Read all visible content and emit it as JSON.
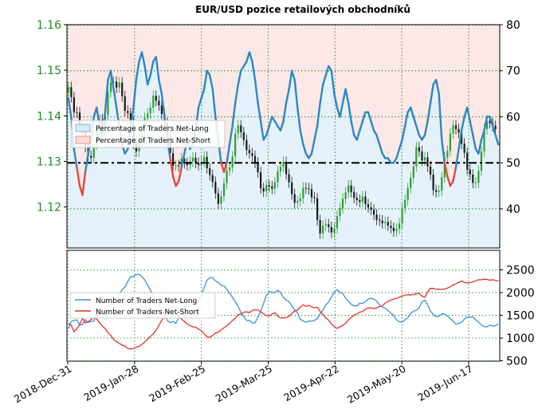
{
  "chart_data": [
    {
      "type": "line",
      "title": "EUR/USD pozice retailových obchodníků",
      "x_tick_labels": [
        "2018-Dec-31",
        "2019-Jan-28",
        "2019-Feb-25",
        "2019-Mar-25",
        "2019-Apr-22",
        "2019-May-20",
        "2019-Jun-17"
      ],
      "left_axis": {
        "ticks": [
          "1.12",
          "1.13",
          "1.14",
          "1.15",
          "1.16"
        ],
        "ylim": [
          1.111,
          1.16
        ],
        "color": "#228B22"
      },
      "right_axis": {
        "ticks": [
          "40",
          "50",
          "60",
          "70",
          "80"
        ],
        "ylim": [
          31.5,
          80
        ]
      },
      "reference_line": {
        "value": 50,
        "style": "dash-dot",
        "color": "#000000"
      },
      "legend": {
        "placement": "center-left",
        "entries": [
          "Percentage of Traders Net-Long",
          "Percentage of Traders Net-Short"
        ]
      },
      "colors": {
        "net_long": "#2E86C1",
        "net_long_light": "#7FB8DE",
        "net_short": "#E8463A",
        "long_fill": "#D6EAF8",
        "short_fill": "#FADBD8",
        "candle": "#1A1A1A",
        "candle_up": "#2CA02C"
      },
      "pct_net_long": [
        64,
        60,
        53,
        49,
        45,
        43,
        48,
        52,
        55,
        60,
        62,
        58,
        56,
        61,
        68,
        70,
        66,
        62,
        58,
        54,
        52,
        53,
        57,
        62,
        68,
        72,
        74,
        71,
        67,
        69,
        72,
        73,
        68,
        65,
        60,
        55,
        51,
        47,
        45,
        46,
        49,
        52,
        55,
        53,
        54,
        57,
        62,
        64,
        66,
        70,
        69,
        66,
        60,
        55,
        50,
        48,
        50,
        54,
        58,
        63,
        67,
        70,
        71,
        72,
        74,
        72,
        68,
        63,
        59,
        55,
        56,
        58,
        60,
        59,
        58,
        57,
        59,
        63,
        66,
        70,
        68,
        62,
        57,
        54,
        52,
        51,
        52,
        55,
        58,
        63,
        67,
        69,
        71,
        70,
        65,
        62,
        60,
        63,
        66,
        63,
        59,
        56,
        55,
        57,
        59,
        61,
        61,
        59,
        57,
        56,
        54,
        52,
        51,
        51,
        50,
        50,
        51,
        53,
        55,
        58,
        61,
        62,
        60,
        58,
        56,
        55,
        56,
        59,
        63,
        67,
        68,
        65,
        55,
        50,
        47,
        45,
        46,
        49,
        53,
        57,
        60,
        62,
        59,
        56,
        53,
        52,
        55,
        57,
        60,
        60,
        58,
        56,
        54
      ],
      "candles_close": [
        1.1463,
        1.1441,
        1.1408,
        1.1407,
        1.1375,
        1.1363,
        1.1332,
        1.1312,
        1.1308,
        1.1337,
        1.137,
        1.1392,
        1.1371,
        1.1402,
        1.1452,
        1.1473,
        1.1475,
        1.1462,
        1.1473,
        1.1443,
        1.1411,
        1.1406,
        1.1385,
        1.1339,
        1.1322,
        1.1347,
        1.1369,
        1.1395,
        1.1405,
        1.1418,
        1.1444,
        1.1433,
        1.1423,
        1.1404,
        1.1384,
        1.1356,
        1.1318,
        1.1291,
        1.1291,
        1.1289,
        1.1306,
        1.1296,
        1.1292,
        1.13,
        1.1308,
        1.1297,
        1.1292,
        1.1299,
        1.131,
        1.1285,
        1.127,
        1.1255,
        1.123,
        1.1207,
        1.1224,
        1.1252,
        1.128,
        1.1287,
        1.1311,
        1.1361,
        1.1379,
        1.1364,
        1.1347,
        1.1325,
        1.1318,
        1.1312,
        1.1297,
        1.1276,
        1.1241,
        1.1234,
        1.1248,
        1.1245,
        1.124,
        1.1254,
        1.1278,
        1.1288,
        1.1299,
        1.1272,
        1.1254,
        1.1228,
        1.1209,
        1.1213,
        1.1219,
        1.1242,
        1.1241,
        1.1239,
        1.1221,
        1.1219,
        1.1171,
        1.1142,
        1.1159,
        1.1162,
        1.1156,
        1.1144,
        1.1153,
        1.118,
        1.1197,
        1.1218,
        1.1232,
        1.1247,
        1.1233,
        1.122,
        1.1215,
        1.1211,
        1.1223,
        1.1206,
        1.1199,
        1.1194,
        1.1183,
        1.1172,
        1.117,
        1.1164,
        1.1167,
        1.1159,
        1.1154,
        1.1147,
        1.1152,
        1.1164,
        1.1198,
        1.1215,
        1.1241,
        1.1264,
        1.1289,
        1.1331,
        1.1322,
        1.1302,
        1.1309,
        1.1289,
        1.1271,
        1.1237,
        1.1233,
        1.1236,
        1.1265,
        1.1308,
        1.1323,
        1.1361,
        1.1379,
        1.1371,
        1.1363,
        1.1339,
        1.1319,
        1.1282,
        1.1271,
        1.1253,
        1.1253,
        1.1279,
        1.1322,
        1.1371,
        1.1389,
        1.1384,
        1.1378,
        1.1371
      ]
    },
    {
      "type": "line",
      "left_axis": {
        "ticks": []
      },
      "right_axis": {
        "ticks": [
          "500",
          "1000",
          "1500",
          "2000",
          "2500"
        ],
        "ylim": [
          490,
          2930
        ]
      },
      "legend": {
        "placement": "center-left",
        "entries": [
          "Number of Traders Net-Long",
          "Number of Traders Net-Short"
        ]
      },
      "series": [
        {
          "name": "Number of Traders Net-Long",
          "color": "#3A8FE0",
          "values": [
            1205,
            1361,
            1386,
            1401,
            1286,
            1298,
            1403,
            1344,
            1368,
            1369,
            1532,
            1500,
            1556,
            1644,
            1708,
            1731,
            1851,
            1899,
            1955,
            2064,
            2124,
            2246,
            2350,
            2351,
            2396,
            2403,
            2348,
            2282,
            2169,
            2050,
            1923,
            1835,
            1728,
            1613,
            1502,
            1381,
            1337,
            1363,
            1319,
            1455,
            1568,
            1675,
            1718,
            1779,
            1802,
            1745,
            1830,
            1951,
            2104,
            2273,
            2327,
            2334,
            2256,
            2226,
            2160,
            2144,
            2077,
            1983,
            1898,
            1798,
            1704,
            1555,
            1475,
            1383,
            1387,
            1330,
            1335,
            1460,
            1593,
            1764,
            1934,
            2024,
            2009,
            2002,
            2049,
            2001,
            1898,
            1837,
            1801,
            1705,
            1619,
            1553,
            1413,
            1377,
            1344,
            1373,
            1369,
            1389,
            1428,
            1536,
            1611,
            1727,
            1795,
            1901,
            2014,
            2065,
            2007,
            1979,
            1878,
            1813,
            1742,
            1709,
            1707,
            1764,
            1765,
            1805,
            1858,
            1878,
            1853,
            1816,
            1724,
            1678,
            1659,
            1605,
            1549,
            1497,
            1400,
            1357,
            1355,
            1401,
            1445,
            1541,
            1590,
            1610,
            1664,
            1800,
            1837,
            1735,
            1592,
            1522,
            1469,
            1477,
            1536,
            1530,
            1484,
            1423,
            1378,
            1304,
            1322,
            1345,
            1416,
            1466,
            1462,
            1462,
            1405,
            1346,
            1290,
            1251,
            1245,
            1286,
            1263,
            1271,
            1312
          ]
        },
        {
          "name": "Number of Traders Net-Short",
          "color": "#E8302A",
          "values": [
            1325,
            1284,
            1138,
            1204,
            1296,
            1438,
            1334,
            1354,
            1412,
            1446,
            1416,
            1337,
            1266,
            1210,
            1116,
            1060,
            964,
            924,
            883,
            843,
            823,
            771,
            758,
            765,
            803,
            814,
            859,
            916,
            971,
            1038,
            1088,
            1167,
            1276,
            1394,
            1457,
            1527,
            1596,
            1570,
            1567,
            1459,
            1413,
            1367,
            1310,
            1275,
            1246,
            1238,
            1198,
            1157,
            1097,
            1024,
            1017,
            1052,
            1112,
            1129,
            1178,
            1227,
            1265,
            1322,
            1389,
            1437,
            1515,
            1526,
            1568,
            1576,
            1559,
            1609,
            1621,
            1621,
            1578,
            1532,
            1492,
            1481,
            1527,
            1558,
            1485,
            1440,
            1443,
            1449,
            1478,
            1539,
            1597,
            1614,
            1681,
            1730,
            1697,
            1719,
            1688,
            1663,
            1677,
            1589,
            1517,
            1441,
            1393,
            1309,
            1251,
            1212,
            1244,
            1276,
            1323,
            1401,
            1453,
            1505,
            1529,
            1569,
            1585,
            1634,
            1665,
            1663,
            1646,
            1660,
            1693,
            1709,
            1769,
            1808,
            1838,
            1854,
            1874,
            1901,
            1925,
            1945,
            1954,
            1949,
            1958,
            1981,
            1979,
            1920,
            1898,
            2018,
            2092,
            2093,
            2071,
            2073,
            2069,
            2079,
            2098,
            2127,
            2166,
            2196,
            2228,
            2252,
            2223,
            2214,
            2219,
            2237,
            2260,
            2282,
            2282,
            2294,
            2291,
            2271,
            2285,
            2265,
            2260
          ]
        }
      ]
    }
  ]
}
